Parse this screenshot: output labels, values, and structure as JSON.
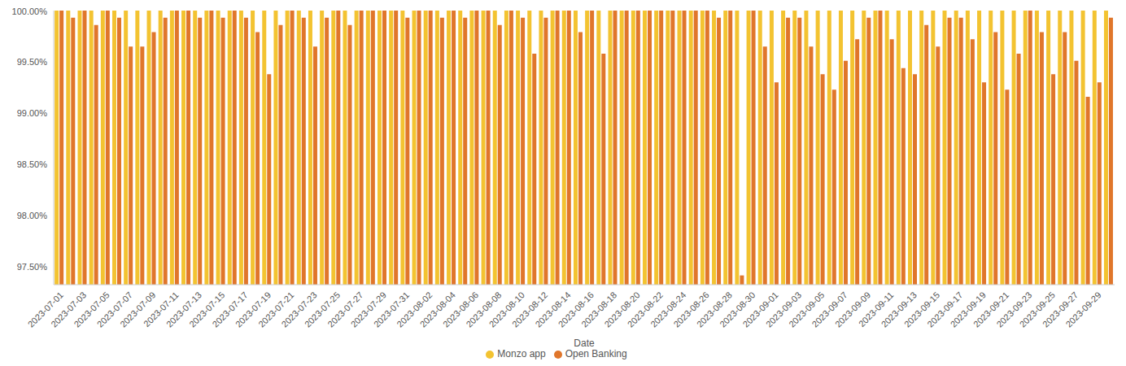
{
  "chart_data": {
    "type": "bar",
    "x_label": "Date",
    "categories": [
      "2023-07-01",
      null,
      "2023-07-03",
      null,
      "2023-07-05",
      null,
      "2023-07-07",
      null,
      "2023-07-09",
      null,
      "2023-07-11",
      null,
      "2023-07-13",
      null,
      "2023-07-15",
      null,
      "2023-07-17",
      null,
      "2023-07-19",
      null,
      "2023-07-21",
      null,
      "2023-07-23",
      null,
      "2023-07-25",
      null,
      "2023-07-27",
      null,
      "2023-07-29",
      null,
      "2023-07-31",
      null,
      "2023-08-02",
      null,
      "2023-08-04",
      null,
      "2023-08-06",
      null,
      "2023-08-08",
      null,
      "2023-08-10",
      null,
      "2023-08-12",
      null,
      "2023-08-14",
      null,
      "2023-08-16",
      null,
      "2023-08-18",
      null,
      "2023-08-20",
      null,
      "2023-08-22",
      null,
      "2023-08-24",
      null,
      "2023-08-26",
      null,
      "2023-08-28",
      null,
      "2023-08-30",
      null,
      "2023-09-01",
      null,
      "2023-09-03",
      null,
      "2023-09-05",
      null,
      "2023-09-07",
      null,
      "2023-09-09",
      null,
      "2023-09-11",
      null,
      "2023-09-13",
      null,
      "2023-09-15",
      null,
      "2023-09-17",
      null,
      "2023-09-19",
      null,
      "2023-09-21",
      null,
      "2023-09-23",
      null,
      "2023-09-25",
      null,
      "2023-09-27",
      null,
      "2023-09-29",
      null
    ],
    "series": [
      {
        "name": "Monzo app",
        "color": "#f3c331",
        "values": [
          100,
          100,
          100,
          100,
          100,
          100,
          100,
          100,
          100,
          100,
          100,
          100,
          100,
          100,
          100,
          100,
          100,
          100,
          100,
          100,
          100,
          100,
          100,
          100,
          100,
          100,
          100,
          100,
          100,
          100,
          100,
          100,
          100,
          100,
          100,
          100,
          100,
          100,
          100,
          100,
          100,
          100,
          100,
          100,
          100,
          100,
          100,
          100,
          100,
          100,
          100,
          100,
          100,
          100,
          100,
          100,
          100,
          100,
          100,
          100,
          100,
          100,
          100,
          100,
          100,
          100,
          100,
          100,
          100,
          100,
          100,
          100,
          100,
          100,
          100,
          100,
          100,
          100,
          100,
          100,
          100,
          100,
          100,
          100,
          100,
          100,
          100,
          100,
          100,
          100,
          100,
          100
        ]
      },
      {
        "name": "Open Banking",
        "color": "#e0762b",
        "values": [
          100,
          99.93,
          100,
          99.86,
          100,
          99.93,
          99.65,
          99.65,
          99.79,
          99.93,
          100,
          100,
          99.93,
          100,
          99.93,
          100,
          99.93,
          99.79,
          99.38,
          99.86,
          100,
          99.93,
          99.65,
          99.93,
          100,
          99.86,
          100,
          100,
          100,
          100,
          99.93,
          100,
          100,
          99.93,
          100,
          99.93,
          100,
          100,
          99.86,
          100,
          99.93,
          99.58,
          99.93,
          100,
          100,
          99.79,
          100,
          99.58,
          100,
          100,
          100,
          100,
          100,
          100,
          100,
          100,
          100,
          99.93,
          100,
          97.42,
          100,
          99.65,
          99.3,
          99.93,
          99.93,
          99.65,
          99.38,
          99.23,
          99.51,
          99.72,
          99.93,
          100,
          99.72,
          99.44,
          99.38,
          99.86,
          99.65,
          99.93,
          99.93,
          99.72,
          99.3,
          99.79,
          99.23,
          99.58,
          100,
          99.79,
          99.38,
          99.79,
          99.51,
          99.16,
          99.3,
          99.93
        ]
      }
    ],
    "ylim": [
      97.33,
      100
    ],
    "yticks": [
      {
        "value": 97.5,
        "label": "97.50%"
      },
      {
        "value": 98,
        "label": "98.00%"
      },
      {
        "value": 98.5,
        "label": "98.50%"
      },
      {
        "value": 99,
        "label": "99.00%"
      },
      {
        "value": 99.5,
        "label": "99.50%"
      },
      {
        "value": 100,
        "label": "100.00%"
      }
    ],
    "grid": false,
    "legend": "bottom"
  }
}
